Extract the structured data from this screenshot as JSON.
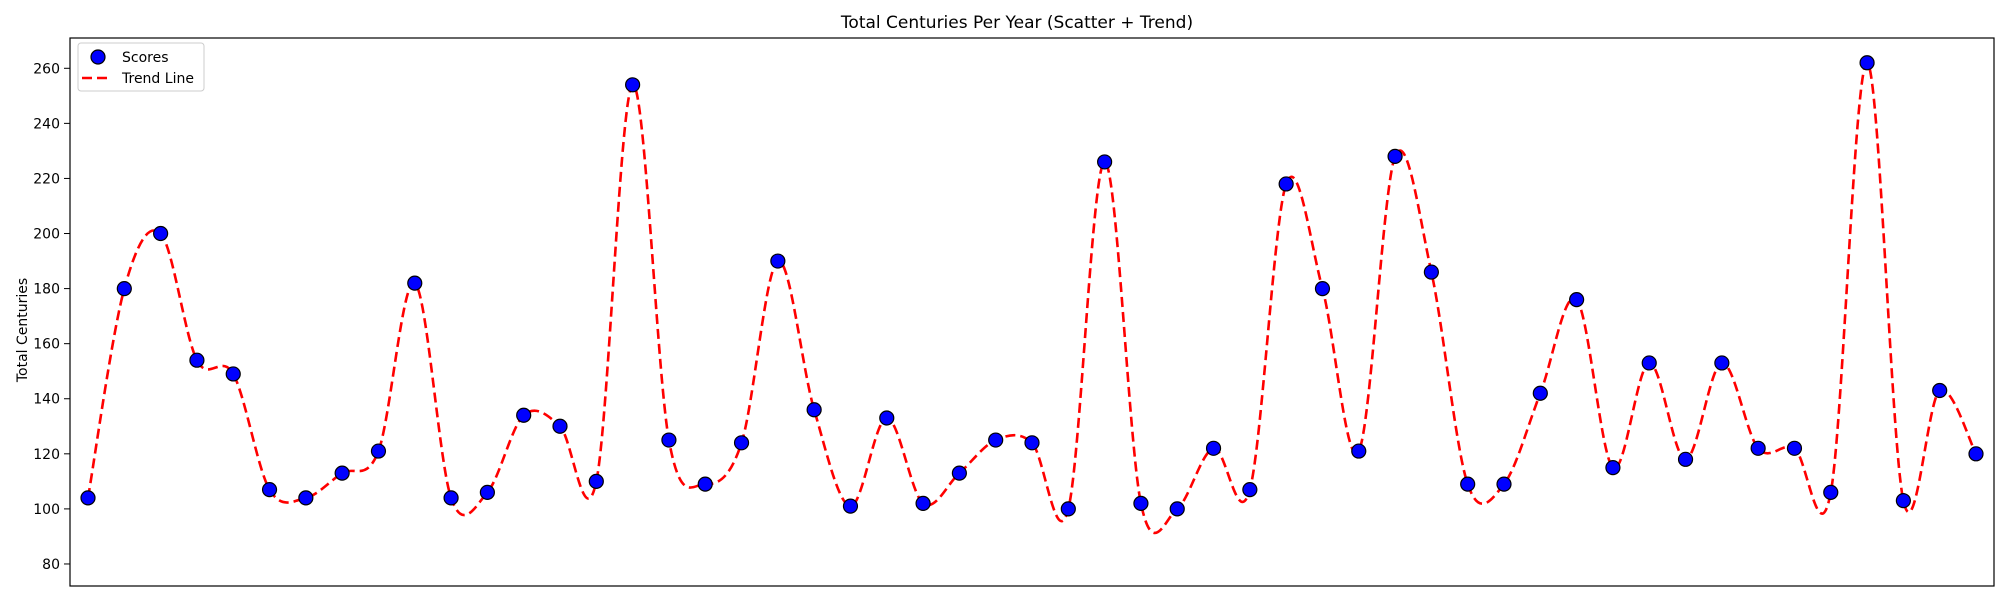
{
  "chart_data": {
    "type": "scatter",
    "title": "Total Centuries Per Year (Scatter + Trend)",
    "xlabel": "",
    "ylabel": "Total Centuries",
    "ylim": [
      72,
      271
    ],
    "yticks": [
      80,
      100,
      120,
      140,
      160,
      180,
      200,
      220,
      240,
      260
    ],
    "x_ticks_visible": false,
    "grid": false,
    "legend": "top-left",
    "series": [
      {
        "name": "Scores",
        "kind": "scatter",
        "marker_color": "#0000ff",
        "edge_color": "#000000",
        "values": [
          104,
          180,
          200,
          154,
          149,
          107,
          104,
          113,
          121,
          182,
          104,
          106,
          134,
          130,
          110,
          254,
          125,
          109,
          124,
          190,
          136,
          101,
          133,
          102,
          113,
          125,
          124,
          100,
          226,
          102,
          100,
          122,
          107,
          218,
          180,
          121,
          228,
          186,
          109,
          109,
          142,
          176,
          115,
          153,
          118,
          153,
          122,
          122,
          106,
          262,
          103,
          143,
          120
        ]
      },
      {
        "name": "Trend Line",
        "kind": "line",
        "line_color": "#ff0000",
        "line_style": "dashed",
        "interpolation": "smooth"
      }
    ]
  }
}
